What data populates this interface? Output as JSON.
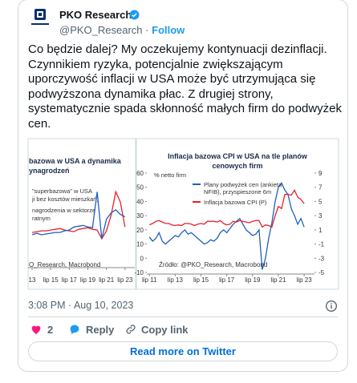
{
  "header": {
    "name": "PKO Research",
    "handle": "@PKO_Research",
    "separator": "·",
    "follow": "Follow"
  },
  "tweet_lines": [
    "Co będzie dalej? My oczekujemy kontynuacji dezinflacji.",
    "Czynnikiem ryzyka, potencjalnie zwiększającym",
    "uporczywość inflacji w USA może być utrzymująca się",
    "podwyższona dynamika płac. Z drugiej strony,",
    "systematycznie spada skłonność małych firm do podwyżek",
    "cen."
  ],
  "images": [
    {
      "title": [
        "bazowa w USA a dynamika",
        "ynagrodzeń"
      ],
      "xlim": [
        2013.07,
        2024.55
      ],
      "ylim": [
        -2,
        10
      ],
      "xticks": [
        {
          "value": 2013.5,
          "label": "13"
        },
        {
          "value": 2015.5,
          "label": "lip 15"
        },
        {
          "value": 2017.5,
          "label": "lip 17"
        },
        {
          "value": 2019.5,
          "label": "lip 19"
        },
        {
          "value": 2021.5,
          "label": "lip 21"
        },
        {
          "value": 2023.5,
          "label": "lip 23"
        }
      ],
      "x": [
        2013.5,
        2014,
        2014.5,
        2015,
        2015.5,
        2016,
        2016.5,
        2017,
        2017.5,
        2018,
        2018.5,
        2019,
        2019.5,
        2020,
        2020.5,
        2021,
        2021.5,
        2022,
        2022.5,
        2023,
        2023.5
      ],
      "series": [
        {
          "name": [
            "\"superbazowa\" w USA",
            "ji bez kosztów mieszkań)"
          ],
          "color": "#e8202a",
          "values": [
            2.3,
            2.4,
            2.5,
            2.5,
            2.6,
            2.7,
            2.8,
            2.6,
            2.5,
            2.4,
            2.7,
            2.8,
            2.9,
            2.7,
            2.6,
            1.5,
            2.5,
            4.5,
            7.5,
            6.2,
            3.0
          ]
        },
        {
          "name": [
            "nagrodzenia w sektorze",
            "ratnym"
          ],
          "color": "#1f5fbf",
          "values": [
            2.0,
            2.2,
            2.0,
            2.1,
            2.2,
            2.3,
            2.3,
            2.5,
            2.6,
            3.0,
            3.1,
            3.2,
            3.0,
            2.9,
            7.5,
            1.5,
            4.0,
            4.8,
            5.2,
            4.6,
            4.3
          ]
        }
      ],
      "source": "O_Research, Macrobond"
    },
    {
      "title": [
        "Inflacja bazowa CPI w USA na tle planów",
        "cenowych firm"
      ],
      "y_label": "% netto firm",
      "xlim": [
        2011.3,
        2024.3
      ],
      "ylim": [
        -10,
        60
      ],
      "y2lim": [
        -5,
        9
      ],
      "xticks": [
        {
          "value": 2011.5,
          "label": "lip 11"
        },
        {
          "value": 2013.5,
          "label": "lip 13"
        },
        {
          "value": 2015.5,
          "label": "lip 15"
        },
        {
          "value": 2017.5,
          "label": "lip 17"
        },
        {
          "value": 2019.5,
          "label": "lip 19"
        },
        {
          "value": 2021.5,
          "label": "lip 21"
        },
        {
          "value": 2023.5,
          "label": "lip 23"
        }
      ],
      "yticks": [
        60,
        50,
        40,
        30,
        20,
        10,
        0,
        -10
      ],
      "y2ticks": [
        9,
        7,
        5,
        3,
        1,
        -1,
        -3,
        -5
      ],
      "x": [
        2011.5,
        2011.75,
        2012,
        2012.25,
        2012.5,
        2012.75,
        2013,
        2013.25,
        2013.5,
        2013.75,
        2014,
        2014.25,
        2014.5,
        2014.75,
        2015,
        2015.25,
        2015.5,
        2015.75,
        2016,
        2016.25,
        2016.5,
        2016.75,
        2017,
        2017.25,
        2017.5,
        2017.75,
        2018,
        2018.25,
        2018.5,
        2018.75,
        2019,
        2019.25,
        2019.5,
        2019.75,
        2020,
        2020.25,
        2020.5,
        2020.75,
        2021,
        2021.25,
        2021.5,
        2021.75,
        2022,
        2022.25,
        2022.5,
        2022.75,
        2023,
        2023.25,
        2023.5
      ],
      "series": [
        {
          "name": [
            "Plany podwyżek cen (ankieta",
            "NFIB), przyspieszone 6m"
          ],
          "color": "#1f5fbf",
          "values": [
            15,
            12,
            14,
            18,
            12,
            10,
            12,
            14,
            16,
            15,
            18,
            20,
            17,
            18,
            16,
            14,
            12,
            10,
            11,
            13,
            12,
            14,
            18,
            20,
            18,
            21,
            24,
            26,
            28,
            24,
            20,
            18,
            16,
            17,
            20,
            -8,
            0,
            14,
            25,
            40,
            50,
            53,
            48,
            45,
            35,
            30,
            24,
            28,
            22
          ]
        },
        {
          "name": [
            "Inflacja bazowa CPI (P)"
          ],
          "color": "#e8202a",
          "axis": "y2",
          "values": [
            1.7,
            1.9,
            2.2,
            2.3,
            2.1,
            1.9,
            1.9,
            1.7,
            1.6,
            1.7,
            1.6,
            1.9,
            1.9,
            1.8,
            1.6,
            1.8,
            1.9,
            1.8,
            2.2,
            2.2,
            2.2,
            2.1,
            2.3,
            1.9,
            1.7,
            1.8,
            2.2,
            2.1,
            2.3,
            2.2,
            2.1,
            2.0,
            2.2,
            2.3,
            2.3,
            1.4,
            1.7,
            1.6,
            1.4,
            3.0,
            4.3,
            4.0,
            6.0,
            6.0,
            5.9,
            6.6,
            5.6,
            5.3,
            4.7
          ]
        }
      ],
      "source": "Źródło: @PKO_Research, Macrobond"
    }
  ],
  "timestamp": "3:08 PM · Aug 10, 2023",
  "actions": {
    "likes": 2,
    "reply": "Reply",
    "copy_link": "Copy link"
  },
  "read_more": "Read more on Twitter"
}
